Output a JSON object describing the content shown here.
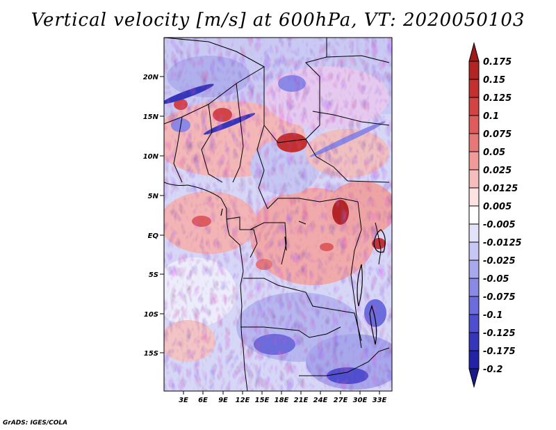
{
  "title": "Vertical velocity [m/s] at 600hPa, VT: 2020050103",
  "credit": "GrADS: IGES/COLA",
  "lat_labels": [
    "20N",
    "15N",
    "10N",
    "5N",
    "EQ",
    "5S",
    "10S",
    "15S"
  ],
  "lon_labels": [
    "3E",
    "6E",
    "9E",
    "12E",
    "15E",
    "18E",
    "21E",
    "24E",
    "27E",
    "30E",
    "33E"
  ],
  "colorbar": {
    "labels": [
      "0.175",
      "0.15",
      "0.125",
      "0.1",
      "0.075",
      "0.05",
      "0.025",
      "0.0125",
      "0.005",
      "-0.005",
      "-0.0125",
      "-0.025",
      "-0.05",
      "-0.075",
      "-0.1",
      "-0.125",
      "-0.175",
      "-0.2"
    ],
    "colors": [
      "#a01a1a",
      "#b32424",
      "#c43030",
      "#d24444",
      "#de5c5c",
      "#e77878",
      "#f09a9a",
      "#f7bcbc",
      "#fde2e2",
      "#ffffff",
      "#e2e2fb",
      "#c7c7f5",
      "#a8a8ee",
      "#8a8ae6",
      "#6c6cdc",
      "#4e4ece",
      "#3636bb",
      "#2222a6",
      "#1a1a8a"
    ]
  }
}
